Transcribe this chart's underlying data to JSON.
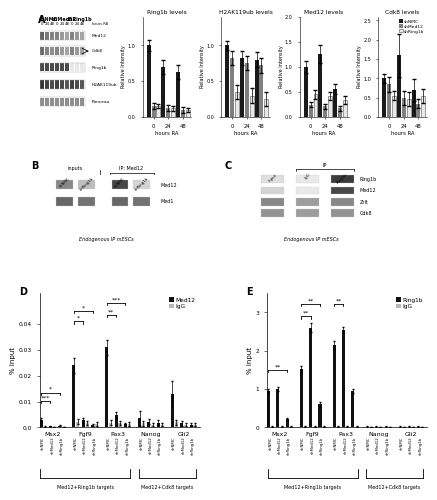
{
  "panel_A_bar_data": {
    "Ring1b": {
      "shNMC": [
        1.0,
        0.7,
        0.63
      ],
      "shMed12": [
        0.15,
        0.13,
        0.1
      ],
      "shRing1b": [
        0.15,
        0.12,
        0.1
      ]
    },
    "H2AK119ub": {
      "shNMC": [
        1.0,
        0.82,
        0.8
      ],
      "shMed12": [
        0.82,
        0.75,
        0.72
      ],
      "shRing1b": [
        0.35,
        0.3,
        0.25
      ]
    },
    "Med12": {
      "shNMC": [
        1.0,
        1.25,
        0.55
      ],
      "shMed12": [
        0.25,
        0.22,
        0.18
      ],
      "shRing1b": [
        0.45,
        0.42,
        0.35
      ]
    },
    "Cdk8": {
      "shNMC": [
        1.0,
        1.6,
        0.7
      ],
      "shMed12": [
        0.85,
        0.5,
        0.35
      ],
      "shRing1b": [
        0.55,
        0.48,
        0.55
      ]
    }
  },
  "panel_A_errors": {
    "Ring1b": {
      "shNMC": [
        0.08,
        0.1,
        0.1
      ],
      "shMed12": [
        0.04,
        0.04,
        0.04
      ],
      "shRing1b": [
        0.03,
        0.03,
        0.03
      ]
    },
    "H2AK119ub": {
      "shNMC": [
        0.06,
        0.1,
        0.1
      ],
      "shMed12": [
        0.1,
        0.1,
        0.1
      ],
      "shRing1b": [
        0.1,
        0.1,
        0.1
      ]
    },
    "Med12": {
      "shNMC": [
        0.12,
        0.18,
        0.1
      ],
      "shMed12": [
        0.05,
        0.05,
        0.05
      ],
      "shRing1b": [
        0.08,
        0.08,
        0.08
      ]
    },
    "Cdk8": {
      "shNMC": [
        0.12,
        0.55,
        0.28
      ],
      "shMed12": [
        0.2,
        0.18,
        0.12
      ],
      "shRing1b": [
        0.12,
        0.18,
        0.18
      ]
    }
  },
  "panel_A_ylims": {
    "Ring1b": [
      0.0,
      1.4
    ],
    "H2AK119ub": [
      0.0,
      1.4
    ],
    "Med12": [
      0.0,
      2.0
    ],
    "Cdk8": [
      0.0,
      2.6
    ]
  },
  "panel_A_yticks": {
    "Ring1b": [
      0.0,
      0.5,
      1.0
    ],
    "H2AK119ub": [
      0.0,
      0.5,
      1.0
    ],
    "Med12": [
      0.0,
      0.5,
      1.0,
      1.5,
      2.0
    ],
    "Cdk8": [
      0.0,
      0.5,
      1.0,
      1.5,
      2.0,
      2.5
    ]
  },
  "panel_A_titles": [
    "Ring1b levels",
    "H2AK119ub levels",
    "Med12 levels",
    "Cdk8 levels"
  ],
  "panel_A_xlabel": "hours RA",
  "panel_A_ylabel": "Relative Intensity",
  "panel_A_xticks": [
    0,
    24,
    48
  ],
  "panel_D_data": {
    "genes": [
      "Msx2",
      "Fgf9",
      "Pax3",
      "Nanog",
      "Gli2"
    ],
    "Med12": [
      0.0028,
      0.024,
      0.031,
      0.0035,
      0.013
    ],
    "Med12_shMed12": [
      0.0005,
      0.0028,
      0.0048,
      0.0022,
      0.0015
    ],
    "Med12_shRing1b": [
      0.0007,
      0.001,
      0.0012,
      0.0018,
      0.001
    ],
    "IgG": [
      0.0003,
      0.0022,
      0.0018,
      0.0016,
      0.002
    ],
    "IgG_shMed12": [
      0.0002,
      0.0018,
      0.0016,
      0.001,
      0.001
    ],
    "IgG_shRing1b": [
      0.0002,
      0.0013,
      0.0013,
      0.001,
      0.001
    ],
    "Med12_err": [
      0.0008,
      0.003,
      0.003,
      0.003,
      0.005
    ],
    "Med12_shMed12_err": [
      0.0002,
      0.001,
      0.001,
      0.001,
      0.001
    ],
    "Med12_shRing1b_err": [
      0.0001,
      0.0003,
      0.0003,
      0.001,
      0.0005
    ],
    "IgG_err": [
      0.0001,
      0.001,
      0.001,
      0.001,
      0.001
    ],
    "IgG_shMed12_err": [
      0.0001,
      0.0007,
      0.0007,
      0.0005,
      0.0005
    ],
    "IgG_shRing1b_err": [
      0.0001,
      0.0007,
      0.0007,
      0.0005,
      0.0005
    ]
  },
  "panel_E_data": {
    "genes": [
      "Msx2",
      "Fgf9",
      "Pax3",
      "Nanog",
      "Gli2"
    ],
    "Ring1b": [
      0.95,
      1.52,
      2.15,
      0.02,
      0.02
    ],
    "Ring1b_shMed12": [
      1.0,
      2.6,
      2.55,
      0.02,
      0.02
    ],
    "Ring1b_shRing1b": [
      0.22,
      0.62,
      0.95,
      0.02,
      0.02
    ],
    "IgG": [
      0.02,
      0.02,
      0.02,
      0.005,
      0.005
    ],
    "IgG_shMed12": [
      0.02,
      0.02,
      0.02,
      0.005,
      0.005
    ],
    "IgG_shRing1b": [
      0.02,
      0.02,
      0.02,
      0.005,
      0.005
    ],
    "Ring1b_err": [
      0.05,
      0.08,
      0.1,
      0.005,
      0.005
    ],
    "Ring1b_shMed12_err": [
      0.05,
      0.12,
      0.08,
      0.005,
      0.005
    ],
    "Ring1b_shRing1b_err": [
      0.03,
      0.05,
      0.06,
      0.005,
      0.005
    ],
    "IgG_err": [
      0.004,
      0.004,
      0.004,
      0.003,
      0.003
    ],
    "IgG_shMed12_err": [
      0.004,
      0.004,
      0.004,
      0.003,
      0.003
    ],
    "IgG_shRing1b_err": [
      0.004,
      0.004,
      0.004,
      0.003,
      0.003
    ]
  },
  "bar_color_black": "#1a1a1a",
  "bar_color_gray": "#808080",
  "bar_color_white": "#e8e8e8",
  "bar_color_dark": "#111111",
  "bar_color_lgray": "#b8b8b8",
  "group_labels": [
    "shNMC",
    "shMed12",
    "shRing1b"
  ]
}
